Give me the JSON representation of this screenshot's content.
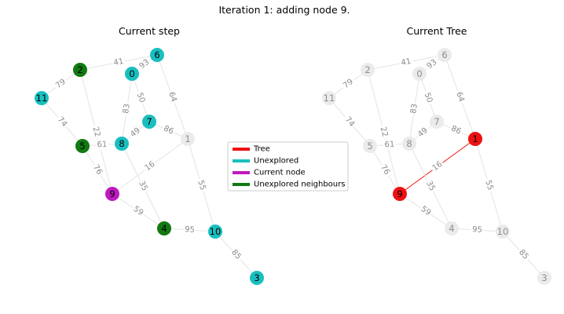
{
  "figure_title": "Iteration 1: adding node 9.",
  "colors": {
    "tree": "#ee1111",
    "unexplored": "#19bfbf",
    "current": "#bf19bf",
    "neighbour": "#117a11",
    "default": "#ebebeb"
  },
  "legend": {
    "tree": "Tree",
    "unexplored": "Unexplored",
    "current": "Current node",
    "neighbours": "Unexplored neighbours"
  },
  "graph": {
    "nodes": [
      "0",
      "1",
      "2",
      "3",
      "4",
      "5",
      "6",
      "7",
      "8",
      "9",
      "10",
      "11"
    ],
    "edges": [
      {
        "a": "2",
        "b": "6",
        "w": "41"
      },
      {
        "a": "0",
        "b": "6",
        "w": "93"
      },
      {
        "a": "2",
        "b": "11",
        "w": "79"
      },
      {
        "a": "0",
        "b": "7",
        "w": "50"
      },
      {
        "a": "0",
        "b": "8",
        "w": "83"
      },
      {
        "a": "6",
        "b": "1",
        "w": "64"
      },
      {
        "a": "11",
        "b": "5",
        "w": "74"
      },
      {
        "a": "2",
        "b": "9",
        "w": "22"
      },
      {
        "a": "7",
        "b": "8",
        "w": "49"
      },
      {
        "a": "7",
        "b": "1",
        "w": "86"
      },
      {
        "a": "5",
        "b": "8",
        "w": "61"
      },
      {
        "a": "5",
        "b": "9",
        "w": "76"
      },
      {
        "a": "9",
        "b": "1",
        "w": "16"
      },
      {
        "a": "8",
        "b": "4",
        "w": "35"
      },
      {
        "a": "1",
        "b": "10",
        "w": "55"
      },
      {
        "a": "9",
        "b": "4",
        "w": "59"
      },
      {
        "a": "4",
        "b": "10",
        "w": "95"
      },
      {
        "a": "10",
        "b": "3",
        "w": "85"
      }
    ]
  },
  "panels": [
    {
      "title": "Current step",
      "status": {
        "0": "unexplored",
        "1": "default",
        "2": "neighbour",
        "3": "unexplored",
        "4": "neighbour",
        "5": "neighbour",
        "6": "unexplored",
        "7": "unexplored",
        "8": "unexplored",
        "9": "current",
        "10": "unexplored",
        "11": "unexplored"
      },
      "tree_edges": []
    },
    {
      "title": "Current Tree",
      "status": {
        "0": "default",
        "1": "tree",
        "2": "default",
        "3": "default",
        "4": "default",
        "5": "default",
        "6": "default",
        "7": "default",
        "8": "default",
        "9": "tree",
        "10": "default",
        "11": "default"
      },
      "tree_edges": [
        [
          "9",
          "1"
        ]
      ]
    }
  ]
}
